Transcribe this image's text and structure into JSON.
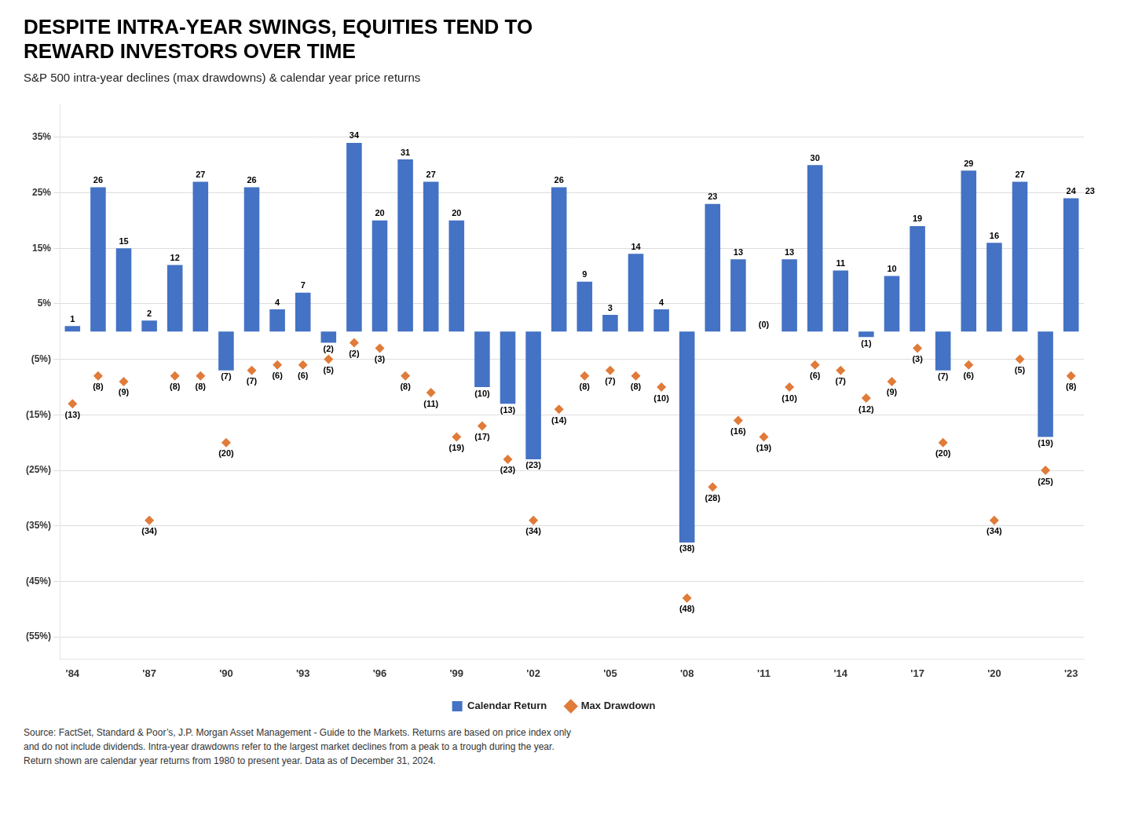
{
  "chart_data": {
    "type": "bar",
    "title": [
      "DESPITE INTRA-YEAR SWINGS, EQUITIES TEND TO",
      "REWARD INVESTORS OVER TIME"
    ],
    "subtitle": "S&P 500 intra-year declines (max drawdowns) & calendar year price returns",
    "source": "Source: FactSet, Standard & Poor’s, J.P. Morgan Asset Management - Guide to the Markets. Returns are based on price index only\nand do not include dividends. Intra-year drawdowns refer to the largest market declines from a peak to a trough during the year.\nReturn shown are calendar year returns from 1980 to present year. Data as of December 31, 2024.",
    "categories": [
      "'84",
      null,
      null,
      "'87",
      null,
      null,
      "'90",
      null,
      null,
      "'93",
      null,
      null,
      "'96",
      null,
      null,
      "'99",
      null,
      null,
      "'02",
      null,
      null,
      "'05",
      null,
      null,
      "'08",
      null,
      null,
      "'11",
      null,
      null,
      "'14",
      null,
      null,
      "'17",
      null,
      null,
      "'20",
      null,
      null,
      "'23"
    ],
    "series": [
      {
        "name": "Calendar Return",
        "type": "bar",
        "color": "#4472C4",
        "values": [
          1,
          26,
          15,
          2,
          12,
          27,
          -7,
          26,
          4,
          7,
          -2,
          34,
          20,
          31,
          27,
          20,
          -10,
          -13,
          -23,
          26,
          9,
          3,
          14,
          4,
          -38,
          23,
          13,
          0,
          13,
          30,
          11,
          -1,
          10,
          19,
          -7,
          29,
          16,
          27,
          -19,
          24
        ],
        "value_labels": [
          "1",
          "26",
          "15",
          "2",
          "12",
          "27",
          "(7)",
          "26",
          "4",
          "7",
          "(2)",
          "34",
          "20",
          "31",
          "27",
          "20",
          "(10)",
          "(13)",
          "(23)",
          "26",
          "9",
          "3",
          "14",
          "4",
          "(38)",
          "23",
          "13",
          "(0)",
          "13",
          "30",
          "11",
          "(1)",
          "10",
          "19",
          "(7)",
          "29",
          "16",
          "27",
          "(19)",
          "24"
        ]
      },
      {
        "name": "Max Drawdown",
        "type": "scatter",
        "marker": "diamond",
        "color": "#E07B39",
        "values": [
          -13,
          -8,
          -9,
          -34,
          -8,
          -8,
          -20,
          -7,
          -6,
          -6,
          -5,
          -2,
          -3,
          -8,
          -11,
          -19,
          -17,
          -23,
          -34,
          -14,
          -8,
          -7,
          -8,
          -10,
          -48,
          -28,
          -16,
          -19,
          -10,
          -6,
          -7,
          -12,
          -9,
          -3,
          -20,
          -6,
          -34,
          -5,
          -25,
          -8
        ],
        "value_labels": [
          "(13)",
          "(8)",
          "(9)",
          "(34)",
          "(8)",
          "(8)",
          "(20)",
          "(7)",
          "(6)",
          "(6)",
          "(5)",
          "(2)",
          "(3)",
          "(8)",
          "(11)",
          "(19)",
          "(17)",
          "(23)",
          "(34)",
          "(14)",
          "(8)",
          "(7)",
          "(8)",
          "(10)",
          "(48)",
          "(28)",
          "(16)",
          "(19)",
          "(10)",
          "(6)",
          "(7)",
          "(12)",
          "(9)",
          "(3)",
          "(20)",
          "(6)",
          "(34)",
          "(5)",
          "(25)",
          "(8)"
        ]
      }
    ],
    "annotations": [
      {
        "text": "23",
        "x": "'23",
        "y": 24
      }
    ],
    "ylim": [
      -59,
      41
    ],
    "yticks": [
      {
        "value": 35,
        "label": "35%"
      },
      {
        "value": 25,
        "label": "25%"
      },
      {
        "value": 15,
        "label": "15%"
      },
      {
        "value": 5,
        "label": "5%"
      },
      {
        "value": -5,
        "label": "(5%)"
      },
      {
        "value": -15,
        "label": "(15%)"
      },
      {
        "value": -25,
        "label": "(25%)"
      },
      {
        "value": -35,
        "label": "(35%)"
      },
      {
        "value": -45,
        "label": "(45%)"
      },
      {
        "value": -55,
        "label": "(55%)"
      }
    ],
    "grid": true,
    "legend": "bottom",
    "data_labels": true
  }
}
